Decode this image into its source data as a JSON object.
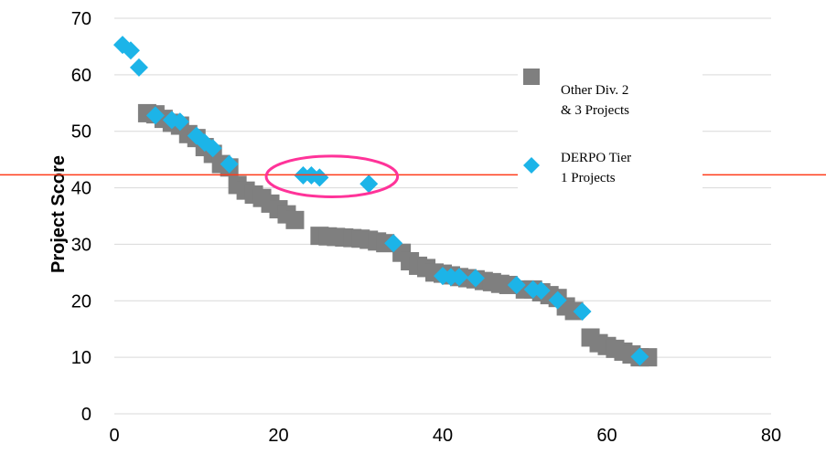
{
  "chart_data": {
    "type": "scatter",
    "title": "",
    "xlabel": "",
    "ylabel": "Project Score",
    "xlim": [
      0,
      80
    ],
    "ylim": [
      0,
      70
    ],
    "x_ticks": [
      0,
      20,
      40,
      60,
      80
    ],
    "y_ticks": [
      0,
      10,
      20,
      30,
      40,
      50,
      60,
      70
    ],
    "grid": "horizontal",
    "legend_position": "right",
    "series": [
      {
        "name": "Other Div. 2 & 3 Projects",
        "legend_lines": [
          "Other Div. 2",
          "& 3 Projects"
        ],
        "marker": "square",
        "color": "#7f7f7f",
        "points": [
          [
            4,
            53.2
          ],
          [
            5,
            53
          ],
          [
            6,
            52.2
          ],
          [
            7,
            51.5
          ],
          [
            8,
            51
          ],
          [
            9,
            49.5
          ],
          [
            10,
            48.8
          ],
          [
            11,
            47.2
          ],
          [
            12,
            46
          ],
          [
            13,
            44.2
          ],
          [
            14,
            43.6
          ],
          [
            15,
            40.5
          ],
          [
            16,
            39.5
          ],
          [
            17,
            38.8
          ],
          [
            18,
            38.2
          ],
          [
            19,
            37.2
          ],
          [
            20,
            36.2
          ],
          [
            21,
            35.3
          ],
          [
            22,
            34.3
          ],
          [
            25,
            31.5
          ],
          [
            26,
            31.4
          ],
          [
            27,
            31.3
          ],
          [
            28,
            31.2
          ],
          [
            29,
            31.1
          ],
          [
            30,
            31
          ],
          [
            31,
            30.8
          ],
          [
            32,
            30.5
          ],
          [
            33,
            30.2
          ],
          [
            35,
            28.5
          ],
          [
            36,
            27
          ],
          [
            37,
            26.2
          ],
          [
            38,
            25.8
          ],
          [
            39,
            25
          ],
          [
            40,
            24.8
          ],
          [
            41,
            24.5
          ],
          [
            42,
            24.2
          ],
          [
            43,
            24
          ],
          [
            44,
            23.8
          ],
          [
            45,
            23.5
          ],
          [
            46,
            23.3
          ],
          [
            47,
            23
          ],
          [
            48,
            22.8
          ],
          [
            50,
            22
          ],
          [
            51,
            22
          ],
          [
            52,
            21.5
          ],
          [
            53,
            21
          ],
          [
            54,
            20.5
          ],
          [
            55,
            19
          ],
          [
            56,
            18.2
          ],
          [
            58,
            13.5
          ],
          [
            59,
            12.5
          ],
          [
            60,
            12
          ],
          [
            61,
            11.5
          ],
          [
            62,
            11
          ],
          [
            63,
            10.5
          ],
          [
            64,
            10
          ],
          [
            65,
            10
          ]
        ]
      },
      {
        "name": "DERPO Tier 1 Projects",
        "legend_lines": [
          "DERPO Tier",
          "1 Projects"
        ],
        "marker": "diamond",
        "color": "#1cb4e8",
        "points": [
          [
            1,
            65.3
          ],
          [
            2,
            64.3
          ],
          [
            3,
            61.3
          ],
          [
            5,
            52.8
          ],
          [
            7,
            52
          ],
          [
            8,
            51.7
          ],
          [
            10,
            49.2
          ],
          [
            11,
            48
          ],
          [
            12,
            47
          ],
          [
            14,
            44.2
          ],
          [
            23,
            42.2
          ],
          [
            24,
            42.2
          ],
          [
            25,
            41.8
          ],
          [
            31,
            40.7
          ],
          [
            34,
            30.2
          ],
          [
            40,
            24.4
          ],
          [
            41,
            24.2
          ],
          [
            42,
            24.2
          ],
          [
            44,
            24
          ],
          [
            49,
            22.8
          ],
          [
            51,
            22
          ],
          [
            52,
            21.8
          ],
          [
            54,
            20.1
          ],
          [
            57,
            18.1
          ],
          [
            64,
            10.1
          ]
        ]
      }
    ],
    "annotations": [
      {
        "type": "horizontal-line",
        "y": 42.3,
        "color": "#ff3b1a"
      },
      {
        "type": "ellipse",
        "center": [
          26.5,
          42
        ],
        "rx": 8,
        "ry": 3.6,
        "color": "#ff3399"
      }
    ]
  }
}
